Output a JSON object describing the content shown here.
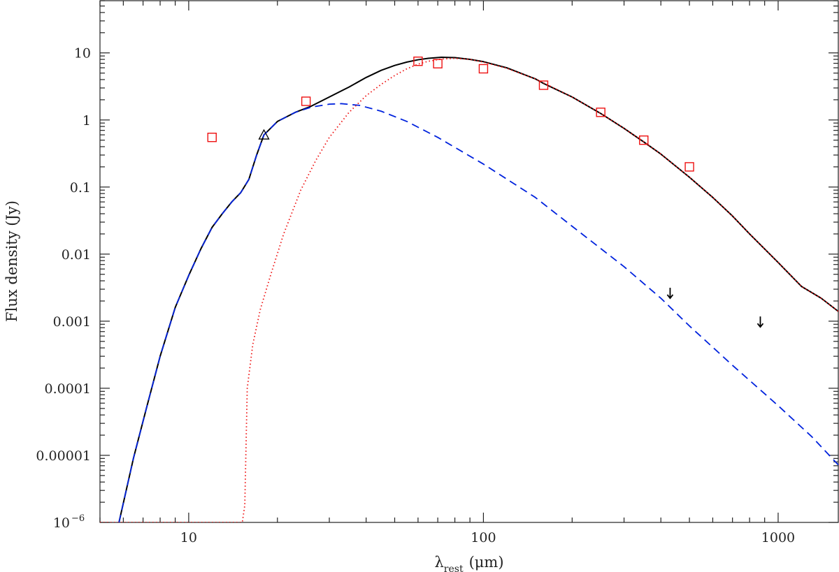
{
  "chart_data": {
    "type": "scatter",
    "xscale": "log",
    "yscale": "log",
    "xlim": [
      5,
      1600
    ],
    "ylim": [
      1e-06,
      60
    ],
    "xlabel": {
      "main": "λ",
      "subscript": "rest",
      "unit": "(μm)"
    },
    "ylabel": "Flux density (Jy)",
    "x_ticks": [
      {
        "value": 10,
        "label": "10"
      },
      {
        "value": 100,
        "label": "100"
      },
      {
        "value": 1000,
        "label": "1000"
      }
    ],
    "y_ticks": [
      {
        "value": 1e-06,
        "label": "10",
        "exp": "−6"
      },
      {
        "value": 1e-05,
        "label": "0.00001"
      },
      {
        "value": 0.0001,
        "label": "0.0001"
      },
      {
        "value": 0.001,
        "label": "0.001"
      },
      {
        "value": 0.01,
        "label": "0.01"
      },
      {
        "value": 0.1,
        "label": "0.1"
      },
      {
        "value": 1,
        "label": "1"
      },
      {
        "value": 10,
        "label": "10"
      }
    ],
    "series": [
      {
        "kind": "line",
        "style": "solid",
        "color": "#000000",
        "points": [
          [
            5.8,
            1e-06
          ],
          [
            6.5,
            9.2e-06
          ],
          [
            7.2,
            5.2e-05
          ],
          [
            8,
            0.0003
          ],
          [
            9,
            0.0016
          ],
          [
            10,
            0.0048
          ],
          [
            11,
            0.012
          ],
          [
            12,
            0.025
          ],
          [
            13,
            0.04
          ],
          [
            14,
            0.06
          ],
          [
            15,
            0.082
          ],
          [
            16,
            0.13
          ],
          [
            17,
            0.3
          ],
          [
            18,
            0.6
          ],
          [
            20,
            0.95
          ],
          [
            23,
            1.3
          ],
          [
            26,
            1.6
          ],
          [
            30,
            2.2
          ],
          [
            35,
            3.1
          ],
          [
            40,
            4.3
          ],
          [
            45,
            5.5
          ],
          [
            50,
            6.5
          ],
          [
            55,
            7.3
          ],
          [
            60,
            7.9
          ],
          [
            65,
            8.3
          ],
          [
            72,
            8.6
          ],
          [
            80,
            8.5
          ],
          [
            90,
            8.0
          ],
          [
            100,
            7.4
          ],
          [
            120,
            6.0
          ],
          [
            150,
            4.1
          ],
          [
            160,
            3.5
          ],
          [
            200,
            2.2
          ],
          [
            250,
            1.25
          ],
          [
            300,
            0.75
          ],
          [
            350,
            0.47
          ],
          [
            400,
            0.31
          ],
          [
            500,
            0.14
          ],
          [
            600,
            0.07
          ],
          [
            700,
            0.037
          ],
          [
            800,
            0.02
          ],
          [
            1000,
            0.0075
          ],
          [
            1200,
            0.0033
          ],
          [
            1400,
            0.0022
          ],
          [
            1600,
            0.0014
          ]
        ]
      },
      {
        "kind": "line",
        "style": "dashed",
        "color": "#0022dd",
        "points": [
          [
            5.8,
            1e-06
          ],
          [
            6.5,
            9.2e-06
          ],
          [
            7.2,
            5.2e-05
          ],
          [
            8,
            0.0003
          ],
          [
            9,
            0.0016
          ],
          [
            10,
            0.0048
          ],
          [
            11,
            0.012
          ],
          [
            12,
            0.025
          ],
          [
            13,
            0.04
          ],
          [
            14,
            0.06
          ],
          [
            15,
            0.082
          ],
          [
            16,
            0.13
          ],
          [
            17,
            0.3
          ],
          [
            18,
            0.6
          ],
          [
            20,
            0.95
          ],
          [
            23,
            1.3
          ],
          [
            26,
            1.55
          ],
          [
            30,
            1.72
          ],
          [
            33,
            1.75
          ],
          [
            38,
            1.65
          ],
          [
            45,
            1.35
          ],
          [
            55,
            0.95
          ],
          [
            70,
            0.55
          ],
          [
            100,
            0.22
          ],
          [
            150,
            0.07
          ],
          [
            200,
            0.026
          ],
          [
            300,
            0.0065
          ],
          [
            400,
            0.0022
          ],
          [
            500,
            0.00085
          ],
          [
            700,
            0.00022
          ],
          [
            1000,
            5.5e-05
          ],
          [
            1300,
            1.9e-05
          ],
          [
            1600,
            7.2e-06
          ]
        ]
      },
      {
        "kind": "line",
        "style": "dotted",
        "color": "#ee1111",
        "points": [
          [
            5,
            1e-06
          ],
          [
            15.2,
            1e-06
          ],
          [
            15.5,
            1.8e-06
          ],
          [
            15.8,
            0.0001
          ],
          [
            16.5,
            0.00045
          ],
          [
            17.5,
            0.0015
          ],
          [
            19,
            0.005
          ],
          [
            21,
            0.02
          ],
          [
            24,
            0.09
          ],
          [
            27,
            0.25
          ],
          [
            30,
            0.55
          ],
          [
            35,
            1.3
          ],
          [
            40,
            2.3
          ],
          [
            45,
            3.4
          ],
          [
            50,
            4.6
          ],
          [
            55,
            5.8
          ],
          [
            60,
            6.8
          ],
          [
            65,
            7.5
          ],
          [
            72,
            8.1
          ],
          [
            80,
            8.3
          ],
          [
            90,
            8.0
          ],
          [
            100,
            7.3
          ],
          [
            120,
            5.9
          ],
          [
            150,
            4.1
          ],
          [
            200,
            2.2
          ],
          [
            250,
            1.25
          ],
          [
            300,
            0.75
          ],
          [
            350,
            0.47
          ],
          [
            400,
            0.31
          ],
          [
            500,
            0.14
          ],
          [
            600,
            0.07
          ],
          [
            700,
            0.037
          ],
          [
            800,
            0.02
          ],
          [
            1000,
            0.0075
          ],
          [
            1200,
            0.0033
          ],
          [
            1400,
            0.0022
          ],
          [
            1600,
            0.0014
          ]
        ]
      },
      {
        "kind": "points",
        "marker": "square",
        "color": "#ee1111",
        "points": [
          [
            12,
            0.55
          ],
          [
            25,
            1.9
          ],
          [
            60,
            7.5
          ],
          [
            70,
            6.9
          ],
          [
            100,
            5.8
          ],
          [
            160,
            3.3
          ],
          [
            250,
            1.3
          ],
          [
            350,
            0.5
          ],
          [
            500,
            0.2
          ]
        ]
      },
      {
        "kind": "points",
        "marker": "triangle",
        "color": "#000000",
        "points": [
          [
            18,
            0.6
          ]
        ]
      },
      {
        "kind": "points",
        "marker": "upper-limit-arrow",
        "color": "#000000",
        "points": [
          [
            430,
            0.0022
          ],
          [
            870,
            0.00082
          ]
        ]
      }
    ]
  }
}
